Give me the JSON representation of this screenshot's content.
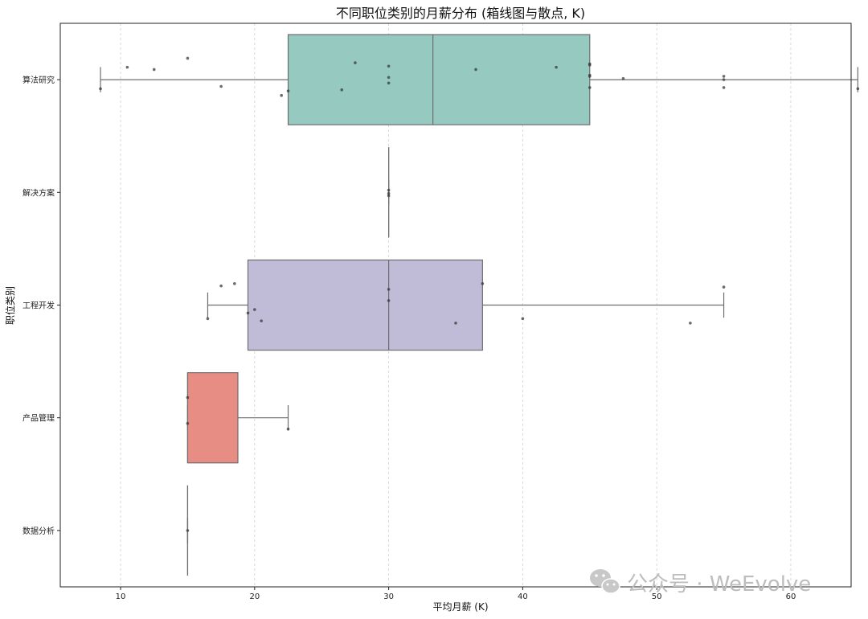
{
  "chart_data": {
    "type": "box",
    "title": "不同职位类别的月薪分布 (箱线图与散点, K)",
    "xlabel": "平均月薪 (K)",
    "ylabel": "职位类别",
    "xlim": [
      5.5,
      64.5
    ],
    "xticks": [
      10,
      20,
      30,
      40,
      50,
      60
    ],
    "grid": "x-dashed",
    "categories": [
      "算法研究",
      "解决方案",
      "工程开发",
      "产品管理",
      "数据分析"
    ],
    "boxes": [
      {
        "category": "算法研究",
        "whisker_low": 8.5,
        "q1": 22.5,
        "median": 33.3,
        "q3": 45,
        "whisker_high": 65,
        "color": "#96c9c0",
        "points": [
          [
            8.5,
            -0.08
          ],
          [
            10.5,
            0.11
          ],
          [
            12.5,
            0.09
          ],
          [
            15,
            0.19
          ],
          [
            17.5,
            -0.06
          ],
          [
            22,
            -0.14
          ],
          [
            22.5,
            -0.1
          ],
          [
            26.5,
            -0.09
          ],
          [
            27.5,
            0.15
          ],
          [
            30,
            0.12
          ],
          [
            30,
            0.02
          ],
          [
            30,
            -0.03
          ],
          [
            36.5,
            0.09
          ],
          [
            42.5,
            0.11
          ],
          [
            45,
            0.14
          ],
          [
            45,
            0.13
          ],
          [
            45,
            0.04
          ],
          [
            45,
            0.03
          ],
          [
            45,
            -0.07
          ],
          [
            47.5,
            0.01
          ],
          [
            55,
            0.03
          ],
          [
            55,
            0.0
          ],
          [
            55,
            -0.07
          ],
          [
            65,
            -0.08
          ]
        ]
      },
      {
        "category": "解决方案",
        "whisker_low": 30,
        "q1": 30,
        "median": 30,
        "q3": 30,
        "whisker_high": 30,
        "color": "#96c9c0",
        "points": [
          [
            30,
            0.02
          ],
          [
            30,
            -0.01
          ],
          [
            30,
            -0.03
          ]
        ]
      },
      {
        "category": "工程开发",
        "whisker_low": 16.5,
        "q1": 19.5,
        "median": 30,
        "q3": 37,
        "whisker_high": 55,
        "color": "#c0bbd7",
        "points": [
          [
            16.5,
            -0.12
          ],
          [
            17.5,
            0.17
          ],
          [
            18.5,
            0.19
          ],
          [
            19.5,
            -0.07
          ],
          [
            20,
            -0.04
          ],
          [
            20.5,
            -0.14
          ],
          [
            30,
            0.14
          ],
          [
            30,
            0.04
          ],
          [
            35,
            -0.16
          ],
          [
            37,
            0.19
          ],
          [
            40,
            -0.12
          ],
          [
            52.5,
            -0.16
          ],
          [
            55,
            0.16
          ]
        ]
      },
      {
        "category": "产品管理",
        "whisker_low": 15,
        "q1": 15,
        "median": 15,
        "q3": 18.75,
        "whisker_high": 22.5,
        "color": "#e88d84",
        "points": [
          [
            15,
            0.18
          ],
          [
            15,
            -0.05
          ],
          [
            22.5,
            -0.1
          ]
        ]
      },
      {
        "category": "数据分析",
        "whisker_low": 15,
        "q1": 15,
        "median": 15,
        "q3": 15,
        "whisker_high": 15,
        "color": "#96c9c0",
        "points": [
          [
            15,
            0.0
          ]
        ]
      }
    ]
  },
  "watermark": {
    "text": "公众号 · WeEvolve",
    "icon": "wechat-icon"
  }
}
